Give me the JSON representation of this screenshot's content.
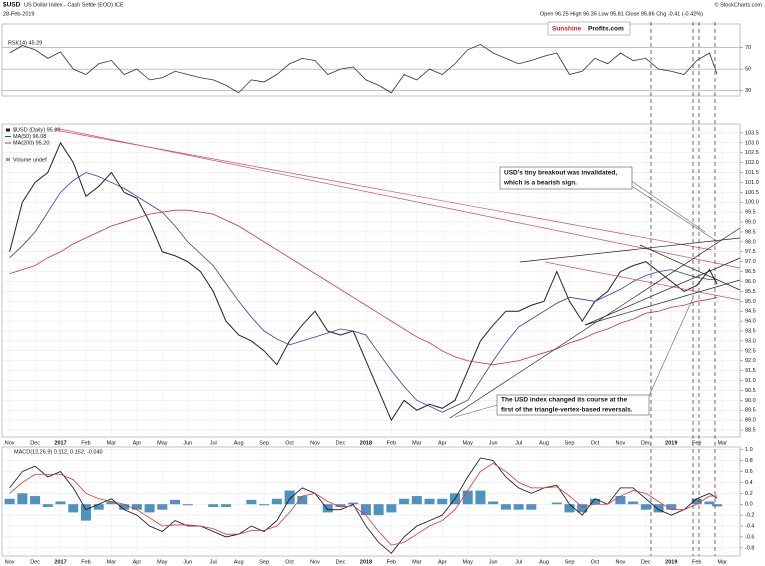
{
  "chart_data": [
    {
      "type": "line",
      "legend": "RSI(14) 45.29",
      "xlim": [
        -0.3,
        28.7
      ],
      "ylim": [
        25,
        92
      ],
      "yticks": [
        70,
        50,
        30
      ],
      "grid": true,
      "x": [
        0,
        0.5,
        1,
        1.5,
        2,
        2.5,
        3,
        3.5,
        4,
        4.5,
        5,
        5.5,
        6,
        6.5,
        7,
        7.5,
        8,
        8.5,
        9,
        9.5,
        10,
        10.5,
        11,
        11.5,
        12,
        12.5,
        13,
        13.5,
        14,
        14.5,
        15,
        15.5,
        16,
        16.5,
        17,
        17.5,
        18,
        18.5,
        19,
        19.5,
        20,
        20.5,
        21,
        21.5,
        22,
        22.5,
        23,
        23.5,
        24,
        24.5,
        25,
        25.5,
        26,
        26.5,
        27,
        27.5,
        27.8
      ],
      "series": [
        {
          "color": "#333333",
          "values": [
            65,
            72,
            68,
            60,
            66,
            50,
            45,
            55,
            58,
            45,
            50,
            40,
            42,
            48,
            45,
            42,
            40,
            35,
            28,
            40,
            38,
            45,
            55,
            60,
            58,
            45,
            50,
            52,
            40,
            35,
            28,
            45,
            40,
            50,
            45,
            55,
            68,
            73,
            65,
            60,
            55,
            58,
            62,
            65,
            45,
            48,
            60,
            55,
            65,
            58,
            60,
            50,
            48,
            45,
            58,
            65,
            45.29
          ]
        }
      ]
    },
    {
      "type": "line",
      "symbol": "$USD",
      "title": "US Dollar Index - Cash Settle (EOD) ICE",
      "date": "28-Feb-2019",
      "quote": "Open 96.25 High 96.35 Low 95.81 Close 95.86 Chg -0.41 (-0.42%)",
      "credit": "© StockCharts.com",
      "logo": [
        "Sunshine",
        "Profits.com"
      ],
      "volume_label": "Volume undef",
      "annotations": [
        [
          "USD's tiny breakout was invalidated,",
          "which is a bearish sign."
        ],
        [
          "The USD index changed its course at the",
          "first of the triangle-vertex-based reversals."
        ]
      ],
      "xlim": [
        -0.3,
        28.7
      ],
      "ylim": [
        88.15,
        103.95
      ],
      "grid": true,
      "xticks": [
        {
          "value": 0,
          "label": "Nov"
        },
        {
          "value": 1,
          "label": "Dec"
        },
        {
          "value": 2,
          "label": "2017"
        },
        {
          "value": 3,
          "label": "Feb"
        },
        {
          "value": 4,
          "label": "Mar"
        },
        {
          "value": 5,
          "label": "Apr"
        },
        {
          "value": 6,
          "label": "May"
        },
        {
          "value": 7,
          "label": "Jun"
        },
        {
          "value": 8,
          "label": "Jul"
        },
        {
          "value": 9,
          "label": "Aug"
        },
        {
          "value": 10,
          "label": "Sep"
        },
        {
          "value": 11,
          "label": "Oct"
        },
        {
          "value": 12,
          "label": "Nov"
        },
        {
          "value": 13,
          "label": "Dec"
        },
        {
          "value": 14,
          "label": "2018"
        },
        {
          "value": 15,
          "label": "Feb"
        },
        {
          "value": 16,
          "label": "Mar"
        },
        {
          "value": 17,
          "label": "Apr"
        },
        {
          "value": 18,
          "label": "May"
        },
        {
          "value": 19,
          "label": "Jun"
        },
        {
          "value": 20,
          "label": "Jul"
        },
        {
          "value": 21,
          "label": "Aug"
        },
        {
          "value": 22,
          "label": "Sep"
        },
        {
          "value": 23,
          "label": "Oct"
        },
        {
          "value": 24,
          "label": "Nov"
        },
        {
          "value": 25,
          "label": "Dec"
        },
        {
          "value": 26,
          "label": "2019"
        },
        {
          "value": 27,
          "label": "Feb"
        },
        {
          "value": 28,
          "label": "Mar"
        }
      ],
      "yticks": [
        103.5,
        {
          "value": 103,
          "label": "103.0"
        },
        102.5,
        {
          "value": 102,
          "label": "102.0"
        },
        101.5,
        {
          "value": 101,
          "label": "101.0"
        },
        100.5,
        {
          "value": 100,
          "label": "100.0"
        },
        99.5,
        {
          "value": 99,
          "label": "99.0"
        },
        98.5,
        {
          "value": 98,
          "label": "98.0"
        },
        97.5,
        {
          "value": 97,
          "label": "97.0"
        },
        96.5,
        {
          "value": 96,
          "label": "96.0"
        },
        95.5,
        {
          "value": 95,
          "label": "95.0"
        },
        94.5,
        {
          "value": 94,
          "label": "94.0"
        },
        93.5,
        {
          "value": 93,
          "label": "93.0"
        },
        92.5,
        {
          "value": 92,
          "label": "92.0"
        },
        91.5,
        {
          "value": 91,
          "label": "91.0"
        },
        90.5,
        {
          "value": 90,
          "label": "90.0"
        },
        89.5,
        {
          "value": 89,
          "label": "89.0"
        },
        88.5
      ],
      "x": [
        0,
        0.5,
        1,
        1.5,
        2,
        2.5,
        3,
        3.5,
        4,
        4.5,
        5,
        5.5,
        6,
        6.5,
        7,
        7.5,
        8,
        8.5,
        9,
        9.5,
        10,
        10.5,
        11,
        11.5,
        12,
        12.5,
        13,
        13.5,
        14,
        14.5,
        15,
        15.5,
        16,
        16.5,
        17,
        17.5,
        18,
        18.5,
        19,
        19.5,
        20,
        20.5,
        21,
        21.5,
        22,
        22.5,
        23,
        23.5,
        24,
        24.5,
        25,
        25.5,
        26,
        26.5,
        27,
        27.5,
        27.8
      ],
      "series": [
        {
          "name": "$USD (Daily) 95.86",
          "color": "#222222",
          "values": [
            97.5,
            100.0,
            101.0,
            101.5,
            103.0,
            102.0,
            100.3,
            100.8,
            101.5,
            100.5,
            100.2,
            99.0,
            97.5,
            97.3,
            97.0,
            96.5,
            95.5,
            94.0,
            93.3,
            93.0,
            92.5,
            91.8,
            93.0,
            93.8,
            94.5,
            93.5,
            93.3,
            93.5,
            92.0,
            90.5,
            89.0,
            90.0,
            89.5,
            89.8,
            89.6,
            90.0,
            91.5,
            93.0,
            93.8,
            94.5,
            94.5,
            94.8,
            95.0,
            96.5,
            95.0,
            94.0,
            95.0,
            95.5,
            96.5,
            96.8,
            97.0,
            96.5,
            96.0,
            95.5,
            95.8,
            96.6,
            95.86
          ]
        },
        {
          "name": "MA(50) 96.08",
          "color": "#3a3aa8",
          "values": [
            97.2,
            97.8,
            98.5,
            99.5,
            100.5,
            101.1,
            101.5,
            101.3,
            101.0,
            100.7,
            100.3,
            99.9,
            99.5,
            98.8,
            98.0,
            97.4,
            96.8,
            95.9,
            95.0,
            94.2,
            93.5,
            93.1,
            92.8,
            93.0,
            93.2,
            93.4,
            93.6,
            93.5,
            93.3,
            92.4,
            91.5,
            90.7,
            90.0,
            89.7,
            89.4,
            89.7,
            90.0,
            91.0,
            92.0,
            92.9,
            93.7,
            94.1,
            94.5,
            94.9,
            95.2,
            95.1,
            95.0,
            95.3,
            95.6,
            96.0,
            96.3,
            96.5,
            96.6,
            96.4,
            96.2,
            96.1,
            96.08
          ]
        },
        {
          "name": "MA(200) 95.20",
          "color": "#cc3344",
          "values": [
            96.4,
            96.6,
            96.8,
            97.2,
            97.5,
            97.9,
            98.2,
            98.5,
            98.8,
            99.0,
            99.2,
            99.4,
            99.5,
            99.6,
            99.6,
            99.5,
            99.4,
            99.1,
            98.8,
            98.4,
            98.0,
            97.6,
            97.2,
            96.8,
            96.4,
            96.0,
            95.6,
            95.2,
            94.8,
            94.4,
            94.0,
            93.6,
            93.2,
            92.9,
            92.5,
            92.2,
            92.0,
            91.9,
            91.8,
            91.9,
            92.0,
            92.2,
            92.4,
            92.6,
            92.9,
            93.1,
            93.4,
            93.6,
            93.9,
            94.1,
            94.4,
            94.5,
            94.7,
            94.8,
            95.0,
            95.1,
            95.2
          ]
        }
      ]
    },
    {
      "type": "line",
      "legend": "MACD(12,26,9) 0.112, 0.152, -0.040",
      "xlim": [
        -0.3,
        28.7
      ],
      "ylim": [
        -0.95,
        1.05
      ],
      "grid": true,
      "xticks": [
        {
          "value": 0,
          "label": "Nov"
        },
        {
          "value": 1,
          "label": "Dec"
        },
        {
          "value": 2,
          "label": "2017"
        },
        {
          "value": 3,
          "label": "Feb"
        },
        {
          "value": 4,
          "label": "Mar"
        },
        {
          "value": 5,
          "label": "Apr"
        },
        {
          "value": 6,
          "label": "May"
        },
        {
          "value": 7,
          "label": "Jun"
        },
        {
          "value": 8,
          "label": "Jul"
        },
        {
          "value": 9,
          "label": "Aug"
        },
        {
          "value": 10,
          "label": "Sep"
        },
        {
          "value": 11,
          "label": "Oct"
        },
        {
          "value": 12,
          "label": "Nov"
        },
        {
          "value": 13,
          "label": "Dec"
        },
        {
          "value": 14,
          "label": "2018"
        },
        {
          "value": 15,
          "label": "Feb"
        },
        {
          "value": 16,
          "label": "Mar"
        },
        {
          "value": 17,
          "label": "Apr"
        },
        {
          "value": 18,
          "label": "May"
        },
        {
          "value": 19,
          "label": "Jun"
        },
        {
          "value": 20,
          "label": "Jul"
        },
        {
          "value": 21,
          "label": "Aug"
        },
        {
          "value": 22,
          "label": "Sep"
        },
        {
          "value": 23,
          "label": "Oct"
        },
        {
          "value": 24,
          "label": "Nov"
        },
        {
          "value": 25,
          "label": "Dec"
        },
        {
          "value": 26,
          "label": "2019"
        },
        {
          "value": 27,
          "label": "Feb"
        },
        {
          "value": 28,
          "label": "Mar"
        }
      ],
      "yticks": [
        {
          "value": 1,
          "label": "1.0"
        },
        0.8,
        0.6,
        0.4,
        0.2,
        {
          "value": 0,
          "label": "0.0"
        },
        -0.2,
        -0.4,
        -0.6,
        -0.8
      ],
      "x": [
        0,
        0.5,
        1,
        1.5,
        2,
        2.5,
        3,
        3.5,
        4,
        4.5,
        5,
        5.5,
        6,
        6.5,
        7,
        7.5,
        8,
        8.5,
        9,
        9.5,
        10,
        10.5,
        11,
        11.5,
        12,
        12.5,
        13,
        13.5,
        14,
        14.5,
        15,
        15.5,
        16,
        16.5,
        17,
        17.5,
        18,
        18.5,
        19,
        19.5,
        20,
        20.5,
        21,
        21.5,
        22,
        22.5,
        23,
        23.5,
        24,
        24.5,
        25,
        25.5,
        26,
        26.5,
        27,
        27.5,
        27.8
      ],
      "series": [
        {
          "type": "bar",
          "color": "#2f7fb5",
          "values": [
            0.1,
            0.2,
            0.15,
            -0.05,
            0.05,
            -0.15,
            -0.3,
            -0.1,
            0.05,
            -0.1,
            -0.1,
            -0.15,
            -0.1,
            0.08,
            -0.02,
            0,
            -0.05,
            -0.05,
            0,
            0.08,
            -0.02,
            0.1,
            0.25,
            0.15,
            0,
            -0.15,
            -0.05,
            0.03,
            -0.2,
            -0.2,
            -0.15,
            0.1,
            0.15,
            0.1,
            0.1,
            0.2,
            0.25,
            0.25,
            0.05,
            -0.1,
            -0.1,
            -0.1,
            0,
            0.03,
            -0.15,
            -0.15,
            0.1,
            0,
            0.15,
            0.05,
            -0.1,
            -0.15,
            -0.1,
            0,
            0.1,
            0.05,
            -0.04
          ]
        },
        {
          "color": "#111111",
          "values": [
            0.3,
            0.6,
            0.7,
            0.5,
            0.6,
            0.3,
            -0.1,
            0.0,
            0.1,
            -0.1,
            -0.2,
            -0.4,
            -0.5,
            -0.3,
            -0.4,
            -0.4,
            -0.5,
            -0.6,
            -0.55,
            -0.4,
            -0.5,
            -0.3,
            0.1,
            0.3,
            0.2,
            -0.1,
            -0.1,
            0.0,
            -0.4,
            -0.7,
            -0.9,
            -0.6,
            -0.4,
            -0.3,
            -0.2,
            0.1,
            0.5,
            0.85,
            0.8,
            0.5,
            0.3,
            0.2,
            0.3,
            0.35,
            0.0,
            -0.2,
            0.1,
            0.0,
            0.3,
            0.3,
            0.1,
            -0.1,
            -0.2,
            -0.1,
            0.1,
            0.2,
            0.112
          ]
        },
        {
          "color": "#dd3333",
          "values": [
            0.2,
            0.4,
            0.55,
            0.55,
            0.55,
            0.45,
            0.2,
            0.1,
            0.05,
            0.0,
            -0.1,
            -0.25,
            -0.4,
            -0.38,
            -0.38,
            -0.4,
            -0.45,
            -0.55,
            -0.55,
            -0.48,
            -0.48,
            -0.4,
            -0.15,
            0.15,
            0.2,
            0.05,
            -0.05,
            -0.03,
            -0.2,
            -0.5,
            -0.75,
            -0.7,
            -0.55,
            -0.4,
            -0.3,
            -0.1,
            0.25,
            0.6,
            0.75,
            0.6,
            0.4,
            0.3,
            0.3,
            0.32,
            0.15,
            -0.05,
            0.0,
            0.0,
            0.15,
            0.25,
            0.2,
            0.05,
            -0.1,
            -0.1,
            0.0,
            0.15,
            0.152
          ]
        }
      ]
    }
  ]
}
